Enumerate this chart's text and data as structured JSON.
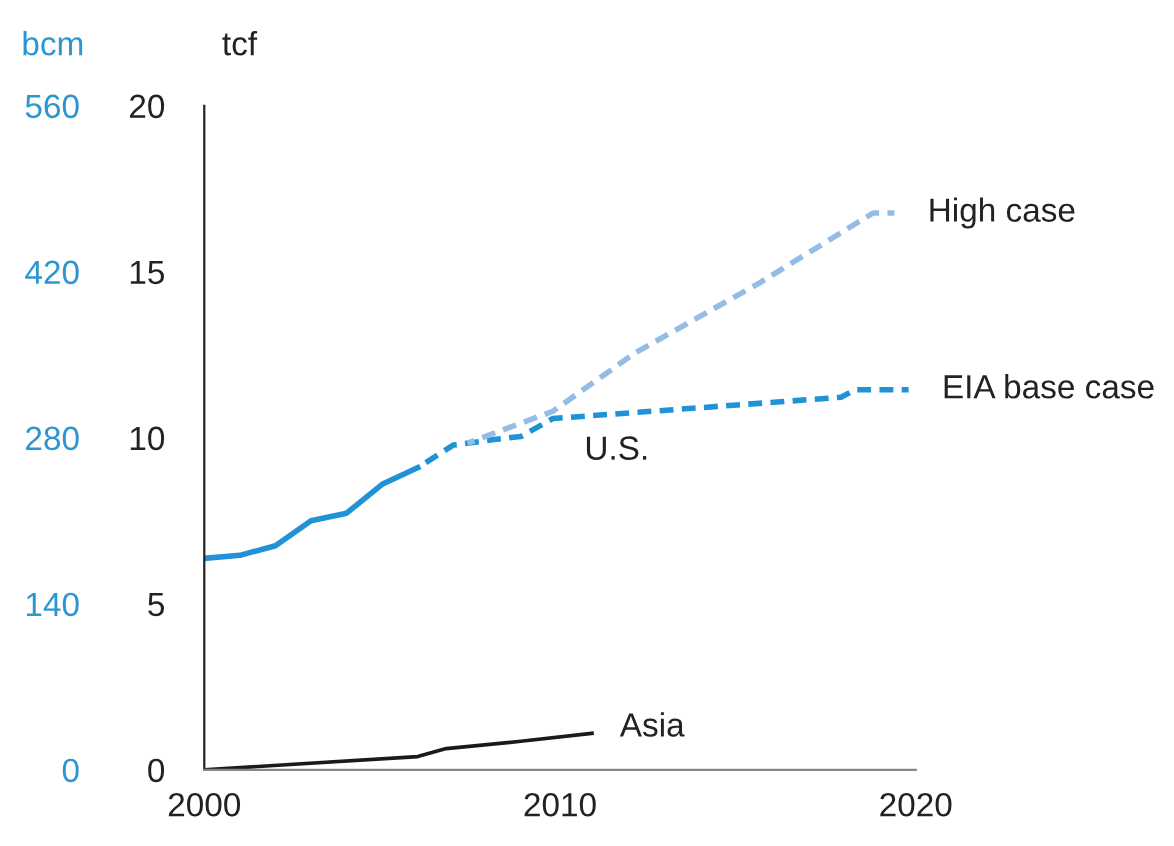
{
  "chart_data": {
    "type": "line",
    "ylabel": "tcf",
    "y2label": "bcm",
    "xlim": [
      2000,
      2020
    ],
    "xticks": [
      2000,
      2010,
      2020
    ],
    "ylim": [
      0,
      20
    ],
    "yticks": [
      0,
      5,
      10,
      15,
      20
    ],
    "y2lim": [
      0,
      560
    ],
    "y2ticks": [
      0,
      140,
      280,
      420,
      560
    ],
    "grid": false,
    "legend": false,
    "marker": "none",
    "series": [
      {
        "name": "U.S.",
        "color": "#1f93d6",
        "line_style": "solid",
        "x": [
          2000,
          2001,
          2002,
          2003,
          2004,
          2005,
          2006
        ],
        "values": [
          6.37,
          6.46,
          6.75,
          7.5,
          7.73,
          8.6,
          9.1
        ]
      },
      {
        "name": "EIA base case",
        "color": "#1f93d6",
        "line_style": "dashed",
        "x": [
          2006,
          2007,
          2008.1,
          2008.9,
          2009.8,
          2017.9,
          2018.3,
          2019.8
        ],
        "values": [
          9.1,
          9.78,
          9.94,
          10.04,
          10.58,
          11.22,
          11.45,
          11.45
        ]
      },
      {
        "name": "High case",
        "color": "#94bde6",
        "line_style": "dashed",
        "x": [
          2007.4,
          2009.8,
          2012.1,
          2015.6,
          2018.8,
          2019.4
        ],
        "values": [
          9.84,
          10.8,
          12.55,
          14.66,
          16.77,
          16.77
        ]
      },
      {
        "name": "Asia",
        "color": "#1a1a1a",
        "line_style": "solid",
        "x": [
          2000,
          2006,
          2006.8,
          2008.9,
          2010.9
        ],
        "values": [
          0,
          0.4,
          0.64,
          0.86,
          1.1
        ]
      }
    ]
  }
}
